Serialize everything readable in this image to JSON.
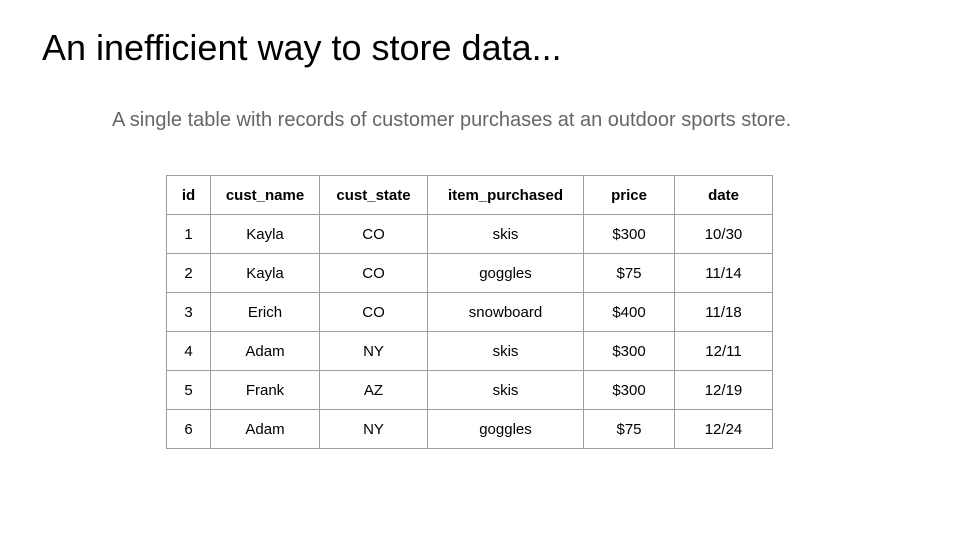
{
  "slide": {
    "title": "An inefficient way to store data...",
    "subtitle": "A single table with records of customer purchases at an outdoor sports store."
  },
  "table": {
    "headers": [
      "id",
      "cust_name",
      "cust_state",
      "item_purchased",
      "price",
      "date"
    ],
    "rows": [
      [
        "1",
        "Kayla",
        "CO",
        "skis",
        "$300",
        "10/30"
      ],
      [
        "2",
        "Kayla",
        "CO",
        "goggles",
        "$75",
        "11/14"
      ],
      [
        "3",
        "Erich",
        "CO",
        "snowboard",
        "$400",
        "11/18"
      ],
      [
        "4",
        "Adam",
        "NY",
        "skis",
        "$300",
        "12/11"
      ],
      [
        "5",
        "Frank",
        "AZ",
        "skis",
        "$300",
        "12/19"
      ],
      [
        "6",
        "Adam",
        "NY",
        "goggles",
        "$75",
        "12/24"
      ]
    ]
  }
}
